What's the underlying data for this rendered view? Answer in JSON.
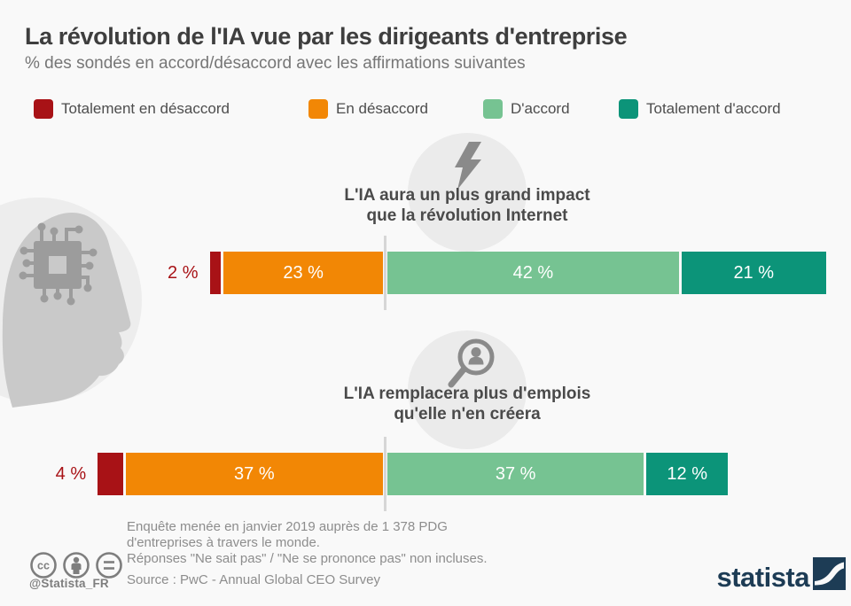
{
  "page": {
    "background": "#f9f9f9"
  },
  "header": {
    "title": "La révolution de l'IA vue par les dirigeants d'entreprise",
    "subtitle": "% des sondés en accord/désaccord avec les affirmations suivantes"
  },
  "legend": {
    "items": [
      {
        "label": "Totalement en désaccord",
        "color": "#a81216"
      },
      {
        "label": "En désaccord",
        "color": "#f28705"
      },
      {
        "label": "D'accord",
        "color": "#76c392"
      },
      {
        "label": "Totalement d'accord",
        "color": "#0c9479"
      }
    ]
  },
  "chart_data": [
    {
      "type": "bar",
      "stacked": true,
      "orientation": "horizontal",
      "icon": "lightning-icon",
      "title_lines": [
        "L'IA aura un plus grand impact",
        "que la révolution Internet"
      ],
      "categories": [
        "Totalement en désaccord",
        "En désaccord",
        "D'accord",
        "Totalement d'accord"
      ],
      "values": [
        2,
        23,
        42,
        21
      ],
      "labels": [
        "2 %",
        "23 %",
        "42 %",
        "21 %"
      ],
      "colors": [
        "#a81216",
        "#f28705",
        "#76c392",
        "#0c9479"
      ],
      "unit": "%",
      "layout": "anchored at agree/disagree divider"
    },
    {
      "type": "bar",
      "stacked": true,
      "orientation": "horizontal",
      "icon": "magnifier-person-icon",
      "title_lines": [
        "L'IA remplacera plus d'emplois",
        "qu'elle n'en créera"
      ],
      "categories": [
        "Totalement en désaccord",
        "En désaccord",
        "D'accord",
        "Totalement d'accord"
      ],
      "values": [
        4,
        37,
        37,
        12
      ],
      "labels": [
        "4 %",
        "37 %",
        "37 %",
        "12 %"
      ],
      "colors": [
        "#a81216",
        "#f28705",
        "#76c392",
        "#0c9479"
      ],
      "unit": "%",
      "layout": "anchored at agree/disagree divider"
    }
  ],
  "footer": {
    "note_line1": "Enquête menée en janvier 2019 auprès de 1 378 PDG",
    "note_line2": "d'entreprises à travers le monde.",
    "note_line3": "Réponses \"Ne sait pas\" / \"Ne se prononce pas\" non incluses.",
    "source": "Source : PwC - Annual Global CEO Survey",
    "credit_handle": "@Statista_FR",
    "brand": "statista"
  }
}
